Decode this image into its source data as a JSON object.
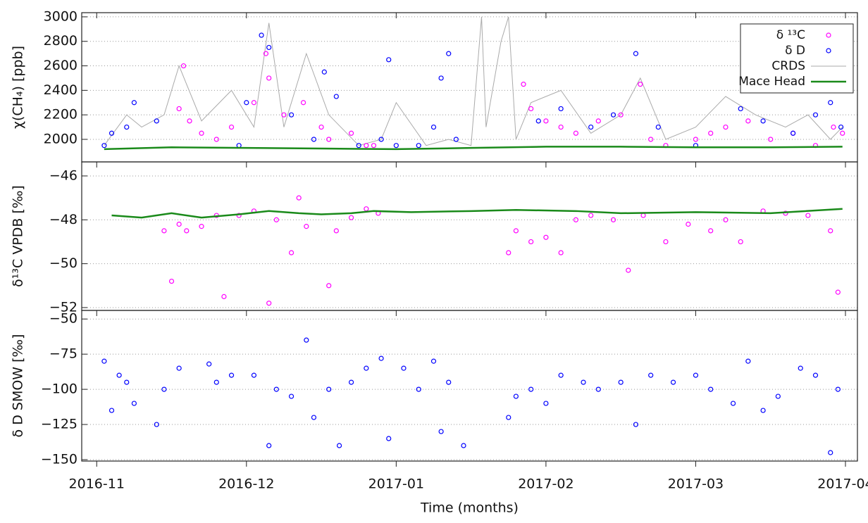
{
  "chart_data": [
    {
      "type": "scatter",
      "ylabel": "χ(CH₄) [ppb]",
      "legend": "upper right",
      "grid": true,
      "xlim": [
        -0.1,
        5.08
      ],
      "xticks": [
        0,
        1,
        2,
        3,
        4,
        5
      ],
      "ylim": [
        1816,
        3034
      ],
      "yticks": [
        1800,
        2000,
        2200,
        2400,
        2600,
        2800,
        3000
      ],
      "series": [
        {
          "name": "δ ¹³C",
          "color": "#ff00ff",
          "marker": "circle",
          "x": [
            0.55,
            0.58,
            0.62,
            0.7,
            0.8,
            0.9,
            1.05,
            1.13,
            1.15,
            1.25,
            1.38,
            1.5,
            1.55,
            1.7,
            1.8,
            1.85,
            2.85,
            2.9,
            3.0,
            3.1,
            3.2,
            3.35,
            3.5,
            3.63,
            3.7,
            3.8,
            4.0,
            4.1,
            4.2,
            4.35,
            4.5,
            4.65,
            4.8,
            4.92,
            4.98
          ],
          "values": [
            2250,
            2600,
            2150,
            2050,
            2000,
            2100,
            2300,
            2700,
            2500,
            2200,
            2300,
            2100,
            2000,
            2050,
            1950,
            1950,
            2450,
            2250,
            2150,
            2100,
            2050,
            2150,
            2200,
            2450,
            2000,
            1950,
            2000,
            2050,
            2100,
            2150,
            2000,
            2050,
            1950,
            2100,
            2050
          ]
        },
        {
          "name": "δ D",
          "color": "#0000ff",
          "marker": "circle",
          "x": [
            0.05,
            0.1,
            0.2,
            0.25,
            0.4,
            0.95,
            1.0,
            1.1,
            1.15,
            1.3,
            1.45,
            1.52,
            1.6,
            1.75,
            1.9,
            1.95,
            2.0,
            2.15,
            2.25,
            2.3,
            2.35,
            2.4,
            2.95,
            3.1,
            3.3,
            3.45,
            3.6,
            3.75,
            4.0,
            4.3,
            4.45,
            4.65,
            4.8,
            4.9,
            4.97
          ],
          "values": [
            1950,
            2050,
            2100,
            2300,
            2150,
            1950,
            2300,
            2850,
            2750,
            2200,
            2000,
            2550,
            2350,
            1950,
            2000,
            2650,
            1950,
            1950,
            2100,
            2500,
            2700,
            2000,
            2150,
            2250,
            2100,
            2200,
            2700,
            2100,
            1950,
            2250,
            2150,
            2050,
            2200,
            2300,
            2100
          ]
        },
        {
          "name": "CRDS",
          "color": "#aaaaaa",
          "marker": "line",
          "x": [
            0.05,
            0.2,
            0.3,
            0.45,
            0.55,
            0.7,
            0.9,
            1.05,
            1.15,
            1.25,
            1.4,
            1.55,
            1.75,
            1.9,
            2.0,
            2.2,
            2.35,
            2.5,
            2.57,
            2.6,
            2.7,
            2.75,
            2.8,
            2.9,
            3.1,
            3.3,
            3.5,
            3.63,
            3.8,
            4.0,
            4.2,
            4.4,
            4.6,
            4.75,
            4.9,
            4.98
          ],
          "values": [
            1950,
            2200,
            2100,
            2200,
            2600,
            2150,
            2400,
            2100,
            2950,
            2100,
            2700,
            2200,
            1950,
            2000,
            2300,
            1950,
            2000,
            1950,
            3000,
            2100,
            2800,
            3000,
            2000,
            2300,
            2400,
            2050,
            2200,
            2500,
            2000,
            2100,
            2350,
            2200,
            2100,
            2200,
            2000,
            2100
          ]
        },
        {
          "name": "Mace Head",
          "color": "#1a8a1a",
          "marker": "line",
          "x": [
            0.05,
            0.5,
            1,
            1.5,
            2,
            2.5,
            3,
            3.5,
            4,
            4.5,
            4.98
          ],
          "values": [
            1920,
            1935,
            1930,
            1925,
            1920,
            1930,
            1940,
            1940,
            1935,
            1935,
            1940
          ]
        }
      ]
    },
    {
      "type": "scatter",
      "ylabel": "δ¹³C VPDB [‰]",
      "grid": true,
      "xlim": [
        -0.1,
        5.08
      ],
      "xticks": [
        0,
        1,
        2,
        3,
        4,
        5
      ],
      "ylim": [
        -52.13,
        -45.36
      ],
      "yticks": [
        {
          "value": -52,
          "label": "−52"
        },
        {
          "value": -50,
          "label": "−50"
        },
        {
          "value": -48,
          "label": "−48"
        },
        {
          "value": -46,
          "label": "−46"
        }
      ],
      "series": [
        {
          "color": "#ff00ff",
          "marker": "circle",
          "x": [
            0.45,
            0.5,
            0.55,
            0.6,
            0.7,
            0.8,
            0.85,
            0.95,
            1.05,
            1.15,
            1.2,
            1.3,
            1.35,
            1.4,
            1.55,
            1.6,
            1.7,
            1.8,
            1.88,
            2.75,
            2.8,
            2.9,
            3.0,
            3.1,
            3.2,
            3.3,
            3.45,
            3.55,
            3.65,
            3.8,
            3.95,
            4.1,
            4.2,
            4.3,
            4.45,
            4.6,
            4.75,
            4.9,
            4.95
          ],
          "values": [
            -48.5,
            -50.8,
            -48.2,
            -48.5,
            -48.3,
            -47.8,
            -51.5,
            -47.8,
            -47.6,
            -51.8,
            -48.0,
            -49.5,
            -47.0,
            -48.3,
            -51.0,
            -48.5,
            -47.9,
            -47.5,
            -47.7,
            -49.5,
            -48.5,
            -49.0,
            -48.8,
            -49.5,
            -48.0,
            -47.8,
            -48.0,
            -50.3,
            -47.8,
            -49.0,
            -48.2,
            -48.5,
            -48.0,
            -49.0,
            -47.6,
            -47.7,
            -47.8,
            -48.5,
            -51.3
          ]
        },
        {
          "color": "#1a8a1a",
          "marker": "line",
          "x": [
            0.1,
            0.3,
            0.5,
            0.7,
            0.95,
            1.15,
            1.35,
            1.5,
            1.7,
            1.85,
            2.1,
            2.5,
            2.8,
            3.2,
            3.5,
            4.0,
            4.5,
            4.98
          ],
          "values": [
            -47.8,
            -47.9,
            -47.7,
            -47.9,
            -47.75,
            -47.6,
            -47.7,
            -47.75,
            -47.7,
            -47.6,
            -47.65,
            -47.6,
            -47.55,
            -47.6,
            -47.7,
            -47.65,
            -47.7,
            -47.5
          ]
        }
      ]
    },
    {
      "type": "scatter",
      "ylabel": "δ D SMOW [‰]",
      "xlabel": "Time (months)",
      "grid": true,
      "xlim": [
        -0.1,
        5.08
      ],
      "xticks": [
        {
          "value": 0,
          "label": "2016-11"
        },
        {
          "value": 1,
          "label": "2016-12"
        },
        {
          "value": 2,
          "label": "2017-01"
        },
        {
          "value": 3,
          "label": "2017-02"
        },
        {
          "value": 4,
          "label": "2017-03"
        },
        {
          "value": 5,
          "label": "2017-04"
        }
      ],
      "ylim": [
        -151,
        -43.9
      ],
      "yticks": [
        {
          "value": -150,
          "label": "−150"
        },
        {
          "value": -125,
          "label": "−125"
        },
        {
          "value": -100,
          "label": "−100"
        },
        {
          "value": -75,
          "label": "−75"
        },
        {
          "value": -50,
          "label": "−50"
        }
      ],
      "series": [
        {
          "color": "#0000ff",
          "marker": "circle",
          "x": [
            0.05,
            0.1,
            0.15,
            0.2,
            0.25,
            0.4,
            0.45,
            0.55,
            0.75,
            0.8,
            0.9,
            1.05,
            1.15,
            1.2,
            1.3,
            1.4,
            1.45,
            1.55,
            1.62,
            1.7,
            1.8,
            1.9,
            1.95,
            2.05,
            2.15,
            2.25,
            2.3,
            2.35,
            2.45,
            2.75,
            2.8,
            2.9,
            3.0,
            3.1,
            3.25,
            3.35,
            3.5,
            3.6,
            3.7,
            3.85,
            4.0,
            4.1,
            4.25,
            4.35,
            4.45,
            4.55,
            4.7,
            4.8,
            4.9,
            4.95
          ],
          "values": [
            -80,
            -115,
            -90,
            -95,
            -110,
            -125,
            -100,
            -85,
            -82,
            -95,
            -90,
            -90,
            -140,
            -100,
            -105,
            -65,
            -120,
            -100,
            -140,
            -95,
            -85,
            -78,
            -135,
            -85,
            -100,
            -80,
            -130,
            -95,
            -140,
            -120,
            -105,
            -100,
            -110,
            -90,
            -95,
            -100,
            -95,
            -125,
            -90,
            -95,
            -90,
            -100,
            -110,
            -80,
            -115,
            -105,
            -85,
            -90,
            -145,
            -100
          ]
        }
      ]
    }
  ]
}
